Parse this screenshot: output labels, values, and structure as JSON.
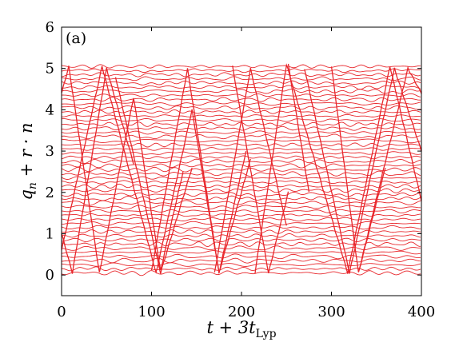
{
  "chart_data": {
    "type": "line",
    "panel_label": "(a)",
    "xlabel": {
      "main": "t + 3t",
      "subscript": "Lyp"
    },
    "ylabel": {
      "q": "q",
      "q_sub": "n",
      "rest": " + r · n"
    },
    "xlim": [
      0,
      400
    ],
    "ylim": [
      -0.5,
      6
    ],
    "xticks": [
      "0",
      "100",
      "200",
      "300",
      "400"
    ],
    "yticks": [
      "0",
      "1",
      "2",
      "3",
      "4",
      "5",
      "6"
    ],
    "grid": false,
    "legend": "none",
    "line_color": "#e8262b",
    "series_description": "stacked trajectories q_n offset by r·n, n = 0..50 (r ≈ 0.1)",
    "series_count": 51,
    "offset_step": 0.1,
    "offset_start": 0.05,
    "zigzag_vertices": [
      [
        [
          0,
          1.0
        ],
        [
          12,
          0.05
        ],
        [
          50,
          5.0
        ],
        [
          80,
          2.7
        ]
      ],
      [
        [
          0,
          4.4
        ],
        [
          8,
          5.05
        ],
        [
          42,
          0.05
        ],
        [
          80,
          4.3
        ],
        [
          110,
          0.1
        ],
        [
          135,
          2.5
        ]
      ],
      [
        [
          0,
          0.6
        ],
        [
          45,
          5.05
        ],
        [
          105,
          0.05
        ],
        [
          145,
          4.0
        ],
        [
          175,
          0.05
        ],
        [
          205,
          3.0
        ]
      ],
      [
        [
          60,
          4.8
        ],
        [
          110,
          0.05
        ],
        [
          145,
          2.6
        ]
      ],
      [
        [
          100,
          0.1
        ],
        [
          140,
          5.0
        ],
        [
          175,
          0.05
        ],
        [
          210,
          2.8
        ]
      ],
      [
        [
          170,
          0.05
        ],
        [
          210,
          5.0
        ],
        [
          250,
          1.2
        ]
      ],
      [
        [
          190,
          5.05
        ],
        [
          230,
          0.05
        ],
        [
          252,
          2.0
        ]
      ],
      [
        [
          215,
          0.05
        ],
        [
          250,
          5.1
        ],
        [
          318,
          0.05
        ],
        [
          365,
          5.05
        ],
        [
          400,
          1.8
        ]
      ],
      [
        [
          252,
          5.1
        ],
        [
          275,
          2.0
        ]
      ],
      [
        [
          270,
          5.0
        ],
        [
          320,
          0.05
        ],
        [
          370,
          5.0
        ],
        [
          400,
          3.0
        ]
      ],
      [
        [
          300,
          5.05
        ],
        [
          330,
          0.05
        ],
        [
          385,
          5.0
        ],
        [
          400,
          4.4
        ]
      ],
      [
        [
          330,
          0.05
        ],
        [
          360,
          2.6
        ]
      ]
    ]
  }
}
